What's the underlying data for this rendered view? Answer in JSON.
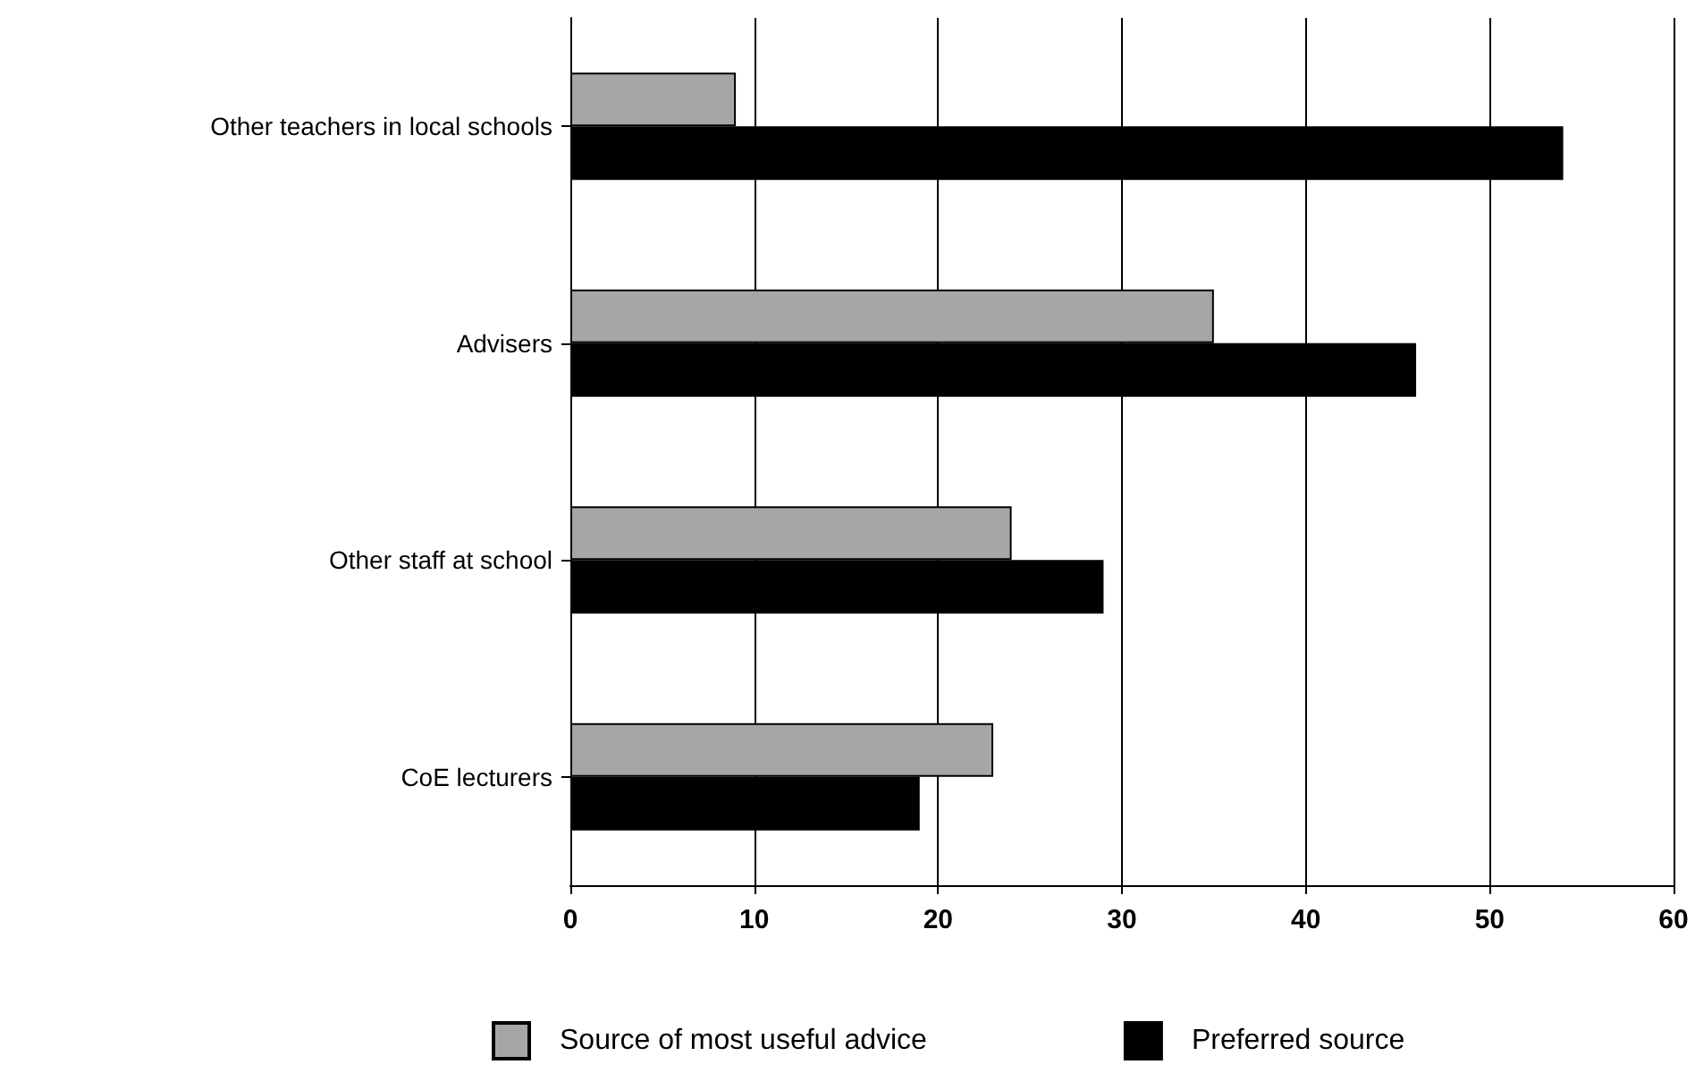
{
  "chart_data": {
    "type": "bar",
    "orientation": "horizontal",
    "categories": [
      "Other teachers in local schools",
      "Advisers",
      "Other staff at school",
      "CoE lecturers"
    ],
    "series": [
      {
        "name": "Source of most useful advice",
        "color": "#a6a6a6",
        "values": [
          9,
          35,
          24,
          23
        ]
      },
      {
        "name": "Preferred source",
        "color": "#000000",
        "values": [
          54,
          46,
          29,
          19
        ]
      }
    ],
    "xlim": [
      0,
      60
    ],
    "xticks": [
      0,
      10,
      20,
      30,
      40,
      50,
      60
    ],
    "grid": "x",
    "legend": "bottom"
  }
}
